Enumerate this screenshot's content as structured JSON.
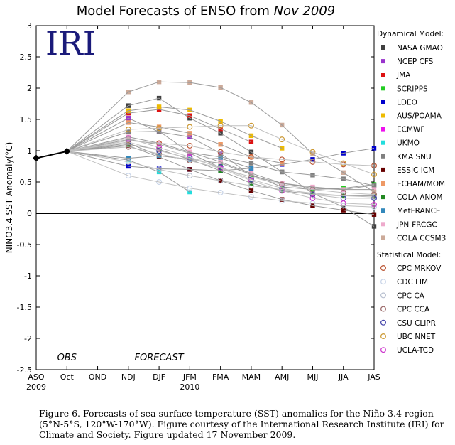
{
  "chart_data": {
    "type": "line",
    "title": "Model Forecasts of ENSO from",
    "title_date": "Nov 2009",
    "logo": "IRI",
    "ylabel": "NINO3.4 SST Anomaly(°C)",
    "ylim": [
      -2.5,
      3
    ],
    "yticks": [
      "3",
      "2.5",
      "2",
      "1.5",
      "1",
      "0.5",
      "0",
      "-0.5",
      "-1",
      "-1.5",
      "-2",
      "-2.5"
    ],
    "categories": [
      "ASO",
      "Oct",
      "OND",
      "NDJ",
      "DJF",
      "JFM",
      "FMA",
      "MAM",
      "AMJ",
      "MJJ",
      "JJA",
      "JAS"
    ],
    "year_labels": [
      {
        "text": "2009",
        "at": "ASO"
      },
      {
        "text": "2010",
        "at": "JFM"
      }
    ],
    "section_labels": [
      {
        "text": "OBS",
        "at": "Oct"
      },
      {
        "text": "FORECAST",
        "at": "DJF"
      }
    ],
    "observed": {
      "x": [
        "ASO",
        "Oct"
      ],
      "y": [
        0.88,
        0.99
      ]
    },
    "legend_dynamical_title": "Dynamical Model:",
    "legend_statistical_title": "Statistical Model:",
    "series": [
      {
        "name": "NASA GMAO",
        "group": "dynamical",
        "color": "#404040",
        "values": [
          null,
          0.99,
          null,
          1.72,
          1.84,
          1.52,
          1.28,
          0.98,
          0.66,
          0.32,
          0.1,
          -0.21
        ]
      },
      {
        "name": "NCEP CFS",
        "group": "dynamical",
        "color": "#9933cc",
        "values": [
          null,
          0.99,
          null,
          1.52,
          1.3,
          1.22,
          0.96,
          0.6,
          0.48,
          0.4,
          0.38,
          0.45
        ]
      },
      {
        "name": "JMA",
        "group": "dynamical",
        "color": "#dd1111",
        "values": [
          null,
          0.99,
          null,
          1.6,
          1.66,
          1.56,
          1.35,
          1.14,
          null,
          null,
          null,
          null
        ]
      },
      {
        "name": "SCRIPPS",
        "group": "dynamical",
        "color": "#22cc22",
        "values": [
          null,
          0.99,
          null,
          1.12,
          0.92,
          0.86,
          0.8,
          0.62,
          0.42,
          0.38,
          0.4,
          0.46
        ]
      },
      {
        "name": "LDEO",
        "group": "dynamical",
        "color": "#0000cc",
        "values": [
          null,
          0.99,
          null,
          0.75,
          0.71,
          0.7,
          0.68,
          0.72,
          0.78,
          0.86,
          0.96,
          1.04
        ]
      },
      {
        "name": "AUS/POAMA",
        "group": "dynamical",
        "color": "#eebb00",
        "values": [
          null,
          0.99,
          null,
          1.64,
          1.7,
          1.65,
          1.47,
          1.24,
          1.04,
          null,
          null,
          null
        ]
      },
      {
        "name": "ECMWF",
        "group": "dynamical",
        "color": "#ee11ee",
        "values": [
          null,
          0.99,
          null,
          1.18,
          1.1,
          0.96,
          0.73,
          null,
          null,
          null,
          null,
          null
        ]
      },
      {
        "name": "UKMO",
        "group": "dynamical",
        "color": "#22dddd",
        "values": [
          null,
          0.99,
          null,
          0.85,
          0.66,
          0.34,
          null,
          null,
          null,
          null,
          null,
          null
        ]
      },
      {
        "name": "KMA SNU",
        "group": "dynamical",
        "color": "#808080",
        "values": [
          null,
          0.99,
          null,
          1.3,
          1.31,
          0.97,
          0.9,
          0.8,
          0.66,
          0.61,
          0.55,
          0.44
        ]
      },
      {
        "name": "ESSIC ICM",
        "group": "dynamical",
        "color": "#660000",
        "values": [
          null,
          0.99,
          null,
          1.08,
          0.9,
          0.7,
          0.52,
          0.36,
          0.22,
          0.12,
          0.05,
          -0.02
        ]
      },
      {
        "name": "ECHAM/MOM",
        "group": "dynamical",
        "color": "#ee9966",
        "values": [
          null,
          0.99,
          null,
          1.45,
          1.38,
          1.28,
          1.1,
          0.9,
          0.8,
          null,
          null,
          null
        ]
      },
      {
        "name": "COLA ANOM",
        "group": "dynamical",
        "color": "#228822",
        "values": [
          null,
          0.99,
          null,
          1.1,
          1.02,
          0.86,
          0.68,
          0.48,
          0.36,
          0.3,
          0.28,
          0.28
        ]
      },
      {
        "name": "MetFRANCE",
        "group": "dynamical",
        "color": "#3388bb",
        "values": [
          null,
          0.99,
          null,
          0.88,
          0.92,
          0.86,
          0.88,
          0.72,
          null,
          null,
          null,
          null
        ]
      },
      {
        "name": "JPN-FRCGC",
        "group": "dynamical",
        "color": "#eeaacc",
        "values": [
          null,
          0.99,
          null,
          1.22,
          1.12,
          0.98,
          0.82,
          0.64,
          0.48,
          0.42,
          0.38,
          0.38
        ]
      },
      {
        "name": "COLA CCSM3",
        "group": "dynamical",
        "color": "#ccaa99",
        "values": [
          null,
          0.99,
          null,
          1.94,
          2.1,
          2.09,
          2.01,
          1.77,
          1.41,
          0.95,
          0.65,
          0.34
        ]
      },
      {
        "name": "CPC MRKOV",
        "group": "statistical",
        "color": "#bb5533",
        "values": [
          null,
          0.99,
          null,
          1.16,
          1.12,
          1.08,
          0.98,
          0.9,
          0.86,
          0.82,
          0.78,
          0.76
        ]
      },
      {
        "name": "CDC LIM",
        "group": "statistical",
        "color": "#c8d4e8",
        "values": [
          null,
          0.99,
          null,
          0.6,
          0.5,
          0.4,
          0.33,
          0.26,
          0.2,
          0.16,
          0.12,
          0.1
        ]
      },
      {
        "name": "CPC CA",
        "group": "statistical",
        "color": "#b8c0d0",
        "values": [
          null,
          0.99,
          null,
          0.82,
          0.7,
          0.6,
          0.52,
          0.44,
          0.38,
          0.32,
          0.28,
          0.26
        ]
      },
      {
        "name": "CPC CCA",
        "group": "statistical",
        "color": "#996666",
        "values": [
          null,
          0.99,
          null,
          1.06,
          0.95,
          0.84,
          0.72,
          0.58,
          0.46,
          0.38,
          0.33,
          0.3
        ]
      },
      {
        "name": "CSU CLIPR",
        "group": "statistical",
        "color": "#4444aa",
        "values": [
          null,
          0.99,
          null,
          1.14,
          1.0,
          0.88,
          0.74,
          0.54,
          0.4,
          0.3,
          0.24,
          0.24
        ]
      },
      {
        "name": "UBC NNET",
        "group": "statistical",
        "color": "#cc9933",
        "values": [
          null,
          0.99,
          null,
          1.34,
          1.36,
          1.38,
          1.4,
          1.4,
          1.18,
          0.98,
          0.8,
          0.62
        ]
      },
      {
        "name": "UCLA-TCD",
        "group": "statistical",
        "color": "#cc33cc",
        "values": [
          null,
          0.99,
          null,
          1.2,
          1.05,
          0.9,
          0.72,
          0.52,
          0.36,
          0.24,
          0.16,
          0.14
        ]
      }
    ]
  },
  "caption": "Figure 6. Forecasts of sea surface temperature (SST) anomalies for the Niño 3.4 region (5°N-5°S, 120°W-170°W).  Figure courtesy of the International Research Institute (IRI) for Climate and Society. Figure updated 17 November 2009."
}
